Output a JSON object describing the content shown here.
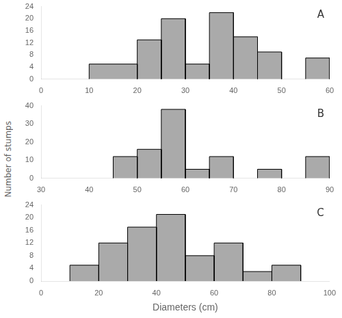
{
  "chart_data": [
    {
      "type": "histogram",
      "annotation": "A",
      "bins": [
        10,
        20,
        25,
        30,
        35,
        40,
        45,
        50,
        55,
        60
      ],
      "values": [
        5,
        13,
        20,
        5,
        22,
        14,
        9,
        0,
        7
      ],
      "xlim": [
        0,
        60
      ],
      "xticks": [
        0,
        10,
        20,
        30,
        40,
        50,
        60
      ],
      "ylim": [
        0,
        24
      ],
      "yticks": [
        0,
        4,
        8,
        12,
        16,
        20,
        24
      ],
      "color": "#aaaaaa",
      "grid": false
    },
    {
      "type": "histogram",
      "annotation": "B",
      "ylabel": "Number of stumps",
      "bins": [
        40,
        45,
        50,
        55,
        60,
        65,
        70,
        75,
        80,
        85,
        90
      ],
      "values": [
        0,
        12,
        16,
        38,
        5,
        12,
        0,
        5,
        0,
        12
      ],
      "xlim": [
        30,
        90
      ],
      "xticks": [
        30,
        40,
        50,
        60,
        70,
        80,
        90
      ],
      "ylim": [
        0,
        40
      ],
      "yticks": [
        0,
        10,
        20,
        30,
        40
      ],
      "color": "#aaaaaa",
      "grid": false
    },
    {
      "type": "histogram",
      "annotation": "C",
      "xlabel": "Diameters (cm)",
      "bins": [
        10,
        20,
        30,
        40,
        50,
        60,
        70,
        80,
        90,
        100
      ],
      "values": [
        5,
        12,
        17,
        21,
        8,
        12,
        3,
        5,
        0
      ],
      "xlim": [
        0,
        100
      ],
      "xticks": [
        0,
        20,
        40,
        60,
        80,
        100
      ],
      "ylim": [
        0,
        24
      ],
      "yticks": [
        0,
        4,
        8,
        12,
        16,
        20,
        24
      ],
      "color": "#aaaaaa",
      "grid": false
    }
  ]
}
